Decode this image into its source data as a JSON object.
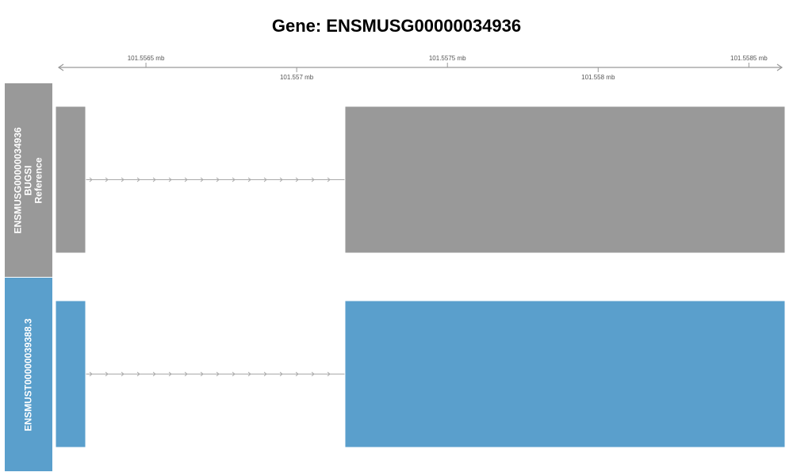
{
  "title": "Gene: ENSMUSG00000034936",
  "axis": {
    "range": [
      101.5562,
      101.55862
    ],
    "ticks": [
      {
        "value": 101.5565,
        "label": "101.5565 mb",
        "row": "upper"
      },
      {
        "value": 101.557,
        "label": "101.557 mb",
        "row": "lower"
      },
      {
        "value": 101.5575,
        "label": "101.5575 mb",
        "row": "upper"
      },
      {
        "value": 101.558,
        "label": "101.558 mb",
        "row": "lower"
      },
      {
        "value": 101.5585,
        "label": "101.5585 mb",
        "row": "upper"
      }
    ]
  },
  "tracks": [
    {
      "name_lines": [
        "ENSMUSG00000034936",
        "BUGSI",
        "Reference"
      ],
      "color": "#999999",
      "exons": [
        [
          101.5562,
          101.5563
        ],
        [
          101.55716,
          101.55862
        ]
      ],
      "intron": [
        101.5563,
        101.55716
      ],
      "strand": "+"
    },
    {
      "name_lines": [
        "ENSMUST00000039388.3"
      ],
      "color": "#5a9fcc",
      "exons": [
        [
          101.5562,
          101.5563
        ],
        [
          101.55716,
          101.55862
        ]
      ],
      "intron": [
        101.5563,
        101.55716
      ],
      "strand": "+"
    }
  ]
}
